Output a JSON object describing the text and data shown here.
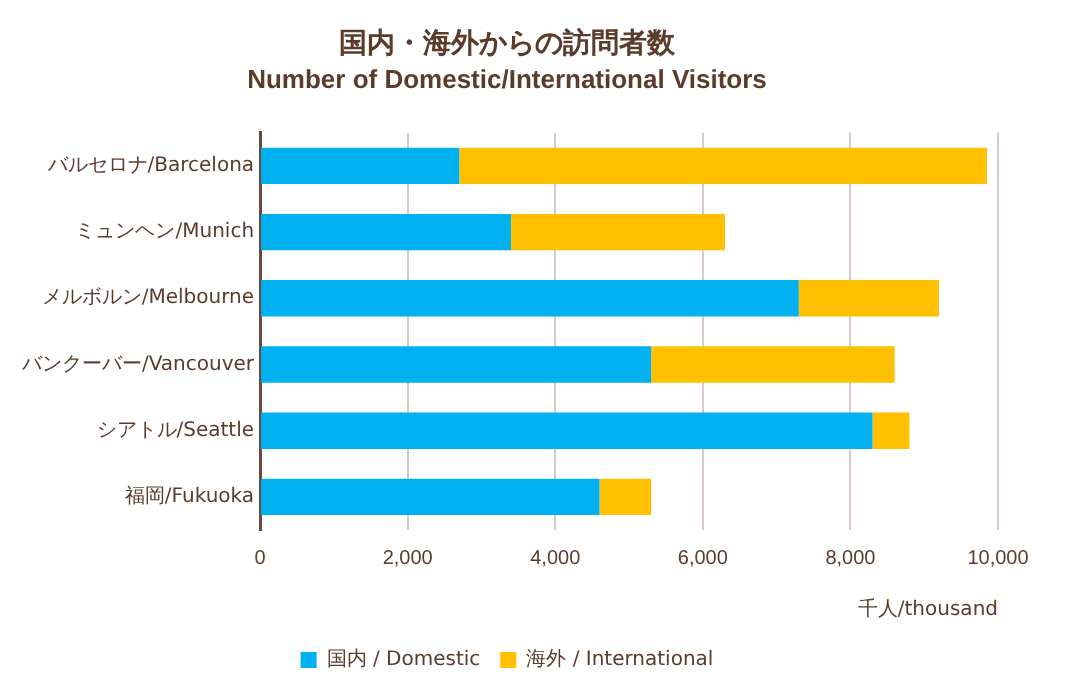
{
  "chart_data": {
    "type": "bar",
    "orientation": "horizontal",
    "stacked": true,
    "title": "国内・海外からの訪問者数",
    "subtitle": "Number of Domestic/International Visitors",
    "xlabel": "千人/thousand",
    "categories": [
      "バルセロナ/Barcelona",
      "ミュンヘン/Munich",
      "メルボルン/Melbourne",
      "バンクーバー/Vancouver",
      "シアトル/Seattle",
      "福岡/Fukuoka"
    ],
    "series": [
      {
        "name": "国内 / Domestic",
        "color": "#00b0f0",
        "values": [
          2700,
          3400,
          7300,
          5300,
          8300,
          4600
        ]
      },
      {
        "name": "海外 / International",
        "color": "#ffc000",
        "values": [
          7150,
          2900,
          1900,
          3300,
          500,
          700
        ]
      }
    ],
    "xlim": [
      0,
      10000
    ],
    "xticks": [
      {
        "value": 0,
        "label": "0"
      },
      {
        "value": 2000,
        "label": "2,000"
      },
      {
        "value": 4000,
        "label": "4,000"
      },
      {
        "value": 6000,
        "label": "6,000"
      },
      {
        "value": 8000,
        "label": "8,000"
      },
      {
        "value": 10000,
        "label": "10,000"
      }
    ],
    "grid": "x",
    "legend": "bottom"
  }
}
